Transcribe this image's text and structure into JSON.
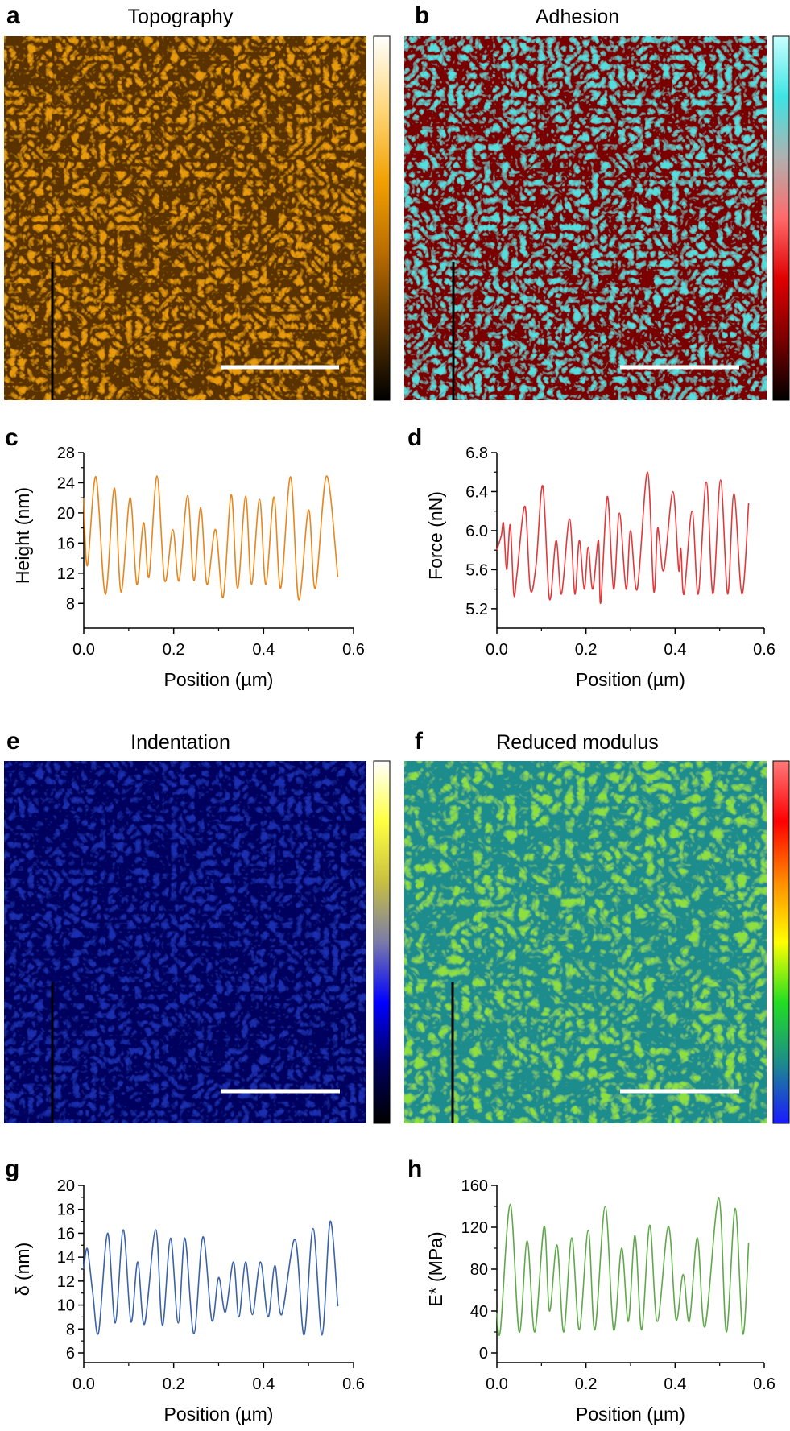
{
  "panels": {
    "a": {
      "letter": "a",
      "title": "Topography",
      "colormap": [
        "#000000",
        "#5a3300",
        "#b86b00",
        "#f2a000",
        "#ffd77a",
        "#ffffff"
      ],
      "texture": "#e89a10"
    },
    "b": {
      "letter": "b",
      "title": "Adhesion",
      "colormap": [
        "#000000",
        "#7a0000",
        "#e00000",
        "#ff6a6a",
        "#b0b0b0",
        "#3fe3e3",
        "#c8ffff"
      ],
      "texture": "#55dede"
    },
    "e": {
      "letter": "e",
      "title": "Indentation",
      "colormap": [
        "#000000",
        "#00005e",
        "#0000ff",
        "#7a7aaa",
        "#c8c040",
        "#ffff40",
        "#ffffff"
      ],
      "texture": "#1b2fb0"
    },
    "f": {
      "letter": "f",
      "title": "Reduced modulus",
      "colormap": [
        "#1a1aff",
        "#1d8c8c",
        "#22dd22",
        "#ffff00",
        "#ff8c00",
        "#ff0000",
        "#ff7a7a"
      ],
      "texture": "#8ee03c"
    }
  },
  "chart_data": [
    {
      "panel": "c",
      "letter": "c",
      "type": "line",
      "color": "#e8861e",
      "xlabel": "Position (µm)",
      "ylabel": "Height (nm)",
      "xlim": [
        0,
        0.6
      ],
      "ylim": [
        6,
        28
      ],
      "xticks": [
        "0.0",
        "0.2",
        "0.4",
        "0.6"
      ],
      "yticks": [
        "8",
        "12",
        "16",
        "20",
        "24",
        "28"
      ],
      "peaks": [
        [
          0.0,
          22
        ],
        [
          0.008,
          13
        ],
        [
          0.027,
          24.8
        ],
        [
          0.048,
          9.2
        ],
        [
          0.068,
          23.3
        ],
        [
          0.083,
          9.5
        ],
        [
          0.103,
          22
        ],
        [
          0.118,
          10.5
        ],
        [
          0.133,
          18.7
        ],
        [
          0.145,
          11.5
        ],
        [
          0.163,
          24.9
        ],
        [
          0.18,
          11
        ],
        [
          0.198,
          17.8
        ],
        [
          0.212,
          11
        ],
        [
          0.231,
          22.3
        ],
        [
          0.245,
          11
        ],
        [
          0.26,
          20.7
        ],
        [
          0.274,
          10.5
        ],
        [
          0.293,
          17.8
        ],
        [
          0.31,
          8.8
        ],
        [
          0.328,
          22.4
        ],
        [
          0.342,
          10
        ],
        [
          0.36,
          22.2
        ],
        [
          0.373,
          10.5
        ],
        [
          0.391,
          21.8
        ],
        [
          0.405,
          10.5
        ],
        [
          0.423,
          22.1
        ],
        [
          0.438,
          10
        ],
        [
          0.46,
          24.8
        ],
        [
          0.478,
          8.5
        ],
        [
          0.5,
          20.4
        ],
        [
          0.515,
          10
        ],
        [
          0.54,
          24.9
        ],
        [
          0.565,
          11.5
        ]
      ]
    },
    {
      "panel": "d",
      "letter": "d",
      "type": "line",
      "color": "#e0393a",
      "xlabel": "Position (µm)",
      "ylabel": "Force (nN)",
      "xlim": [
        0,
        0.6
      ],
      "ylim": [
        5.1,
        6.8
      ],
      "xticks": [
        "0.0",
        "0.2",
        "0.4",
        "0.6"
      ],
      "yticks": [
        "5.2",
        "5.6",
        "6.0",
        "6.4",
        "6.8"
      ],
      "peaks": [
        [
          0.0,
          5.8
        ],
        [
          0.01,
          5.95
        ],
        [
          0.015,
          6.07
        ],
        [
          0.022,
          5.6
        ],
        [
          0.03,
          6.06
        ],
        [
          0.038,
          5.35
        ],
        [
          0.045,
          5.55
        ],
        [
          0.063,
          6.25
        ],
        [
          0.075,
          5.4
        ],
        [
          0.088,
          5.65
        ],
        [
          0.103,
          6.46
        ],
        [
          0.118,
          5.3
        ],
        [
          0.133,
          5.9
        ],
        [
          0.145,
          5.35
        ],
        [
          0.163,
          6.12
        ],
        [
          0.175,
          5.35
        ],
        [
          0.185,
          5.9
        ],
        [
          0.196,
          5.4
        ],
        [
          0.205,
          5.83
        ],
        [
          0.215,
          5.4
        ],
        [
          0.228,
          5.9
        ],
        [
          0.233,
          5.26
        ],
        [
          0.248,
          6.35
        ],
        [
          0.262,
          5.4
        ],
        [
          0.275,
          6.18
        ],
        [
          0.29,
          5.4
        ],
        [
          0.3,
          6.0
        ],
        [
          0.315,
          5.4
        ],
        [
          0.338,
          6.6
        ],
        [
          0.352,
          5.38
        ],
        [
          0.36,
          6.0
        ],
        [
          0.365,
          5.9
        ],
        [
          0.375,
          5.6
        ],
        [
          0.395,
          6.4
        ],
        [
          0.408,
          5.6
        ],
        [
          0.413,
          5.82
        ],
        [
          0.42,
          5.35
        ],
        [
          0.438,
          6.2
        ],
        [
          0.452,
          5.35
        ],
        [
          0.47,
          6.5
        ],
        [
          0.485,
          5.35
        ],
        [
          0.502,
          6.52
        ],
        [
          0.518,
          5.35
        ],
        [
          0.532,
          6.38
        ],
        [
          0.55,
          5.35
        ],
        [
          0.565,
          6.28
        ]
      ]
    },
    {
      "panel": "g",
      "letter": "g",
      "type": "line",
      "color": "#3a62a8",
      "xlabel": "Position (µm)",
      "ylabel": "δ (nm)",
      "xlim": [
        0,
        0.6
      ],
      "ylim": [
        6,
        20
      ],
      "xticks": [
        "0.0",
        "0.2",
        "0.4",
        "0.6"
      ],
      "yticks": [
        "6",
        "8",
        "10",
        "12",
        "14",
        "16",
        "18",
        "20"
      ],
      "peaks": [
        [
          0.0,
          13
        ],
        [
          0.008,
          14.7
        ],
        [
          0.02,
          11
        ],
        [
          0.033,
          7.7
        ],
        [
          0.053,
          16
        ],
        [
          0.07,
          8.5
        ],
        [
          0.088,
          16.3
        ],
        [
          0.105,
          8.6
        ],
        [
          0.12,
          13.6
        ],
        [
          0.135,
          8.4
        ],
        [
          0.16,
          16.3
        ],
        [
          0.175,
          8.3
        ],
        [
          0.193,
          15.6
        ],
        [
          0.21,
          8.5
        ],
        [
          0.225,
          15.6
        ],
        [
          0.245,
          7.6
        ],
        [
          0.265,
          15.7
        ],
        [
          0.285,
          8.7
        ],
        [
          0.3,
          12.3
        ],
        [
          0.315,
          9.4
        ],
        [
          0.333,
          13.6
        ],
        [
          0.345,
          9
        ],
        [
          0.36,
          13.6
        ],
        [
          0.375,
          9.2
        ],
        [
          0.393,
          13.6
        ],
        [
          0.41,
          9
        ],
        [
          0.425,
          13.3
        ],
        [
          0.44,
          9.2
        ],
        [
          0.47,
          15.5
        ],
        [
          0.49,
          7.5
        ],
        [
          0.51,
          16.4
        ],
        [
          0.53,
          7.5
        ],
        [
          0.548,
          17
        ],
        [
          0.565,
          9.9
        ]
      ]
    },
    {
      "panel": "h",
      "letter": "h",
      "type": "line",
      "color": "#5fa94a",
      "xlabel": "Position (µm)",
      "ylabel": "E* (MPa)",
      "xlim": [
        0,
        0.6
      ],
      "ylim": [
        0,
        160
      ],
      "xticks": [
        "0.0",
        "0.2",
        "0.4",
        "0.6"
      ],
      "yticks": [
        "0",
        "40",
        "80",
        "120",
        "160"
      ],
      "peaks": [
        [
          0.0,
          38
        ],
        [
          0.008,
          22
        ],
        [
          0.03,
          142
        ],
        [
          0.05,
          20
        ],
        [
          0.068,
          107
        ],
        [
          0.085,
          20
        ],
        [
          0.106,
          121
        ],
        [
          0.118,
          40
        ],
        [
          0.135,
          103
        ],
        [
          0.15,
          20
        ],
        [
          0.168,
          110
        ],
        [
          0.185,
          22
        ],
        [
          0.205,
          117
        ],
        [
          0.22,
          22
        ],
        [
          0.243,
          140
        ],
        [
          0.262,
          22
        ],
        [
          0.28,
          100
        ],
        [
          0.295,
          30
        ],
        [
          0.31,
          112
        ],
        [
          0.325,
          22
        ],
        [
          0.343,
          122
        ],
        [
          0.36,
          30
        ],
        [
          0.385,
          121
        ],
        [
          0.402,
          32
        ],
        [
          0.418,
          75
        ],
        [
          0.432,
          30
        ],
        [
          0.45,
          110
        ],
        [
          0.467,
          25
        ],
        [
          0.498,
          148
        ],
        [
          0.515,
          20
        ],
        [
          0.535,
          138
        ],
        [
          0.552,
          18
        ],
        [
          0.565,
          105
        ]
      ]
    }
  ]
}
